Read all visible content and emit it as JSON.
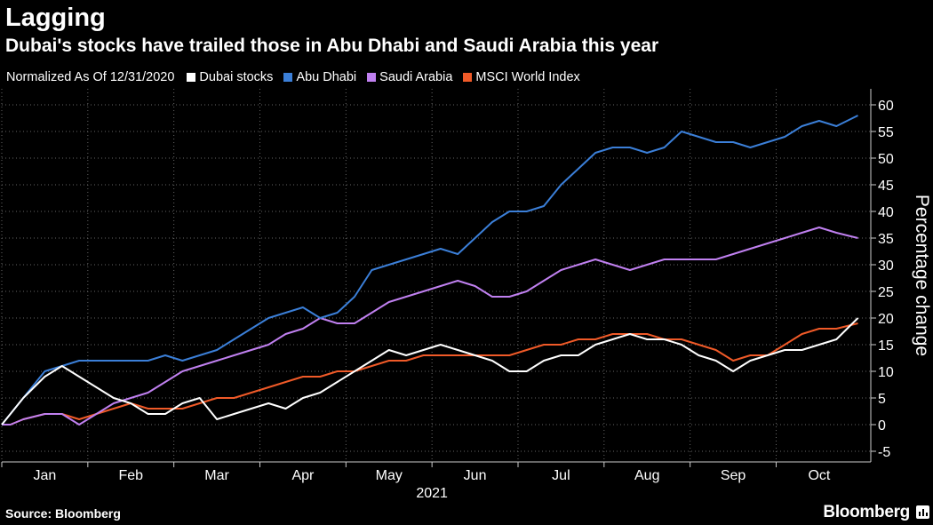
{
  "title": "Lagging",
  "subtitle": "Dubai's stocks have trailed those in Abu Dhabi and Saudi Arabia this year",
  "legend_note": "Normalized As Of 12/31/2020",
  "source": "Source: Bloomberg",
  "brand": "Bloomberg",
  "chart_data": {
    "type": "line",
    "ylabel": "Percentage change",
    "xlabel": "2021",
    "ylim": [
      -7,
      63
    ],
    "yticks": [
      -5,
      0,
      5,
      10,
      15,
      20,
      25,
      30,
      35,
      40,
      45,
      50,
      55,
      60
    ],
    "xlim": [
      0,
      10.1
    ],
    "month_ticks": [
      "Jan",
      "Feb",
      "Mar",
      "Apr",
      "May",
      "Jun",
      "Jul",
      "Aug",
      "Sep",
      "Oct"
    ],
    "year_label": "2021",
    "grid": true,
    "legend_position": "top-left",
    "x": [
      0,
      0.1,
      0.25,
      0.5,
      0.7,
      0.9,
      1.1,
      1.3,
      1.5,
      1.7,
      1.9,
      2.1,
      2.3,
      2.5,
      2.7,
      2.9,
      3.1,
      3.3,
      3.5,
      3.7,
      3.9,
      4.1,
      4.3,
      4.5,
      4.7,
      4.9,
      5.1,
      5.3,
      5.5,
      5.7,
      5.9,
      6.1,
      6.3,
      6.5,
      6.7,
      6.9,
      7.1,
      7.3,
      7.5,
      7.7,
      7.9,
      8.1,
      8.3,
      8.5,
      8.7,
      8.9,
      9.1,
      9.3,
      9.5,
      9.7,
      9.95
    ],
    "series": [
      {
        "name": "Dubai stocks",
        "color": "#ffffff",
        "values": [
          0,
          2,
          5,
          9,
          11,
          9,
          7,
          5,
          4,
          2,
          2,
          4,
          5,
          1,
          2,
          3,
          4,
          3,
          5,
          6,
          8,
          10,
          12,
          14,
          13,
          14,
          15,
          14,
          13,
          12,
          10,
          10,
          12,
          13,
          13,
          15,
          16,
          17,
          16,
          16,
          15,
          13,
          12,
          10,
          12,
          13,
          14,
          14,
          15,
          16,
          20
        ]
      },
      {
        "name": "Abu Dhabi",
        "color": "#3b7fd8",
        "values": [
          0,
          2,
          5,
          10,
          11,
          12,
          12,
          12,
          12,
          12,
          13,
          12,
          13,
          14,
          16,
          18,
          20,
          21,
          22,
          20,
          21,
          24,
          29,
          30,
          31,
          32,
          33,
          32,
          35,
          38,
          40,
          40,
          41,
          45,
          48,
          51,
          52,
          52,
          51,
          52,
          55,
          54,
          53,
          53,
          52,
          53,
          54,
          56,
          57,
          56,
          58
        ]
      },
      {
        "name": "Saudi Arabia",
        "color": "#c080f0",
        "values": [
          0,
          0,
          1,
          2,
          2,
          0,
          2,
          4,
          5,
          6,
          8,
          10,
          11,
          12,
          13,
          14,
          15,
          17,
          18,
          20,
          19,
          19,
          21,
          23,
          24,
          25,
          26,
          27,
          26,
          24,
          24,
          25,
          27,
          29,
          30,
          31,
          30,
          29,
          30,
          31,
          31,
          31,
          31,
          32,
          33,
          34,
          35,
          36,
          37,
          36,
          35
        ]
      },
      {
        "name": "MSCI World Index",
        "color": "#f05a28",
        "values": [
          0,
          0,
          1,
          2,
          2,
          1,
          2,
          3,
          4,
          3,
          3,
          3,
          4,
          5,
          5,
          6,
          7,
          8,
          9,
          9,
          10,
          10,
          11,
          12,
          12,
          13,
          13,
          13,
          13,
          13,
          13,
          14,
          15,
          15,
          16,
          16,
          17,
          17,
          17,
          16,
          16,
          15,
          14,
          12,
          13,
          13,
          15,
          17,
          18,
          18,
          19
        ]
      }
    ]
  }
}
